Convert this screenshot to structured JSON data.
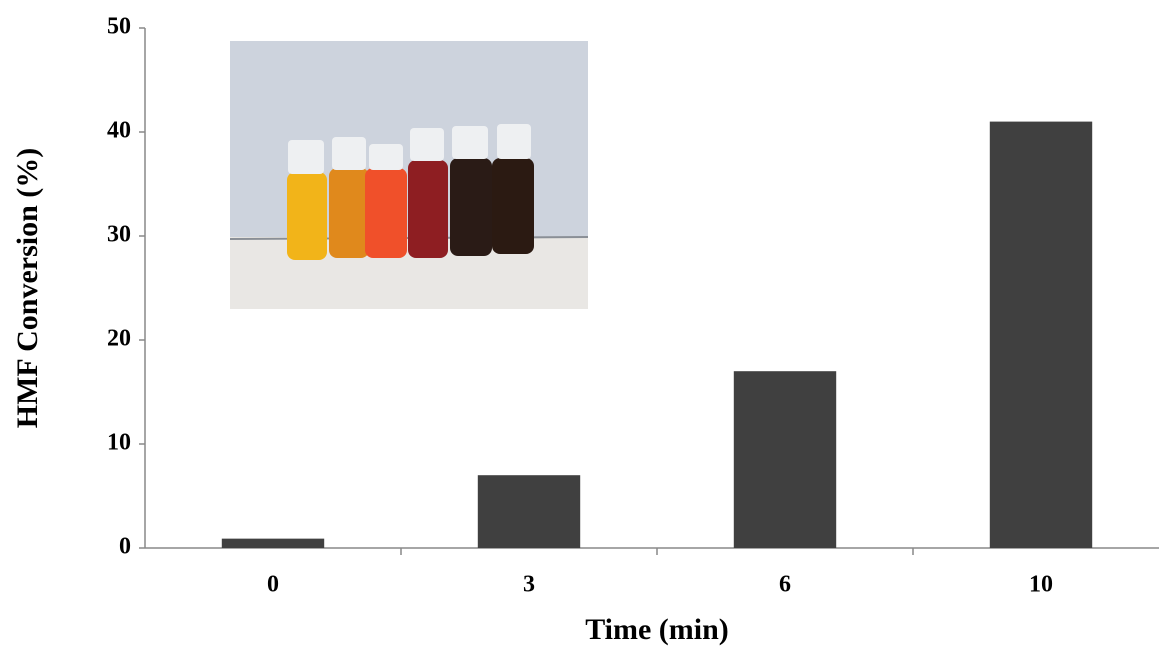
{
  "chart_data": {
    "type": "bar",
    "x_label": "Time (min)",
    "y_label": "HMF Conversion (%)",
    "categories": [
      "0",
      "3",
      "6",
      "10"
    ],
    "values": [
      0.9,
      7,
      17,
      41
    ],
    "color": "#404040",
    "ylim": [
      0,
      50
    ],
    "yticks": [
      0,
      10,
      20,
      30,
      40,
      50
    ],
    "grid": false
  }
}
